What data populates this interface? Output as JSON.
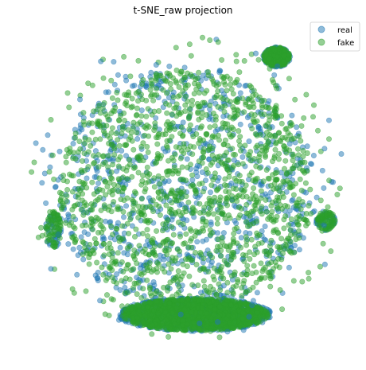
{
  "chart_data": {
    "type": "scatter",
    "title": "t-SNE_raw projection",
    "axes_visible": false,
    "grid": false,
    "legend_position": "top-right",
    "series": [
      {
        "name": "real",
        "color": "#1f77b4",
        "marker_alpha": 0.5
      },
      {
        "name": "fake",
        "color": "#2ca02c",
        "marker_alpha": 0.5
      }
    ],
    "clusters": [
      {
        "cx": 0.0,
        "cy": 0.0,
        "rx": 0.78,
        "ry": 0.74,
        "density": "dense",
        "shape": "main blob"
      },
      {
        "cx": 0.05,
        "cy": -0.78,
        "rx": 0.45,
        "ry": 0.1,
        "density": "dense",
        "shape": "bottom lobe"
      },
      {
        "cx": 0.55,
        "cy": 0.82,
        "rx": 0.08,
        "ry": 0.06,
        "density": "medium",
        "shape": "top-right islands"
      },
      {
        "cx": -0.82,
        "cy": -0.25,
        "rx": 0.05,
        "ry": 0.12,
        "density": "sparse",
        "shape": "left edge islands"
      },
      {
        "cx": 0.85,
        "cy": -0.2,
        "rx": 0.06,
        "ry": 0.06,
        "density": "sparse",
        "shape": "right edge islands"
      }
    ],
    "xlim": [
      -1,
      1
    ],
    "ylim": [
      -1,
      1
    ]
  }
}
